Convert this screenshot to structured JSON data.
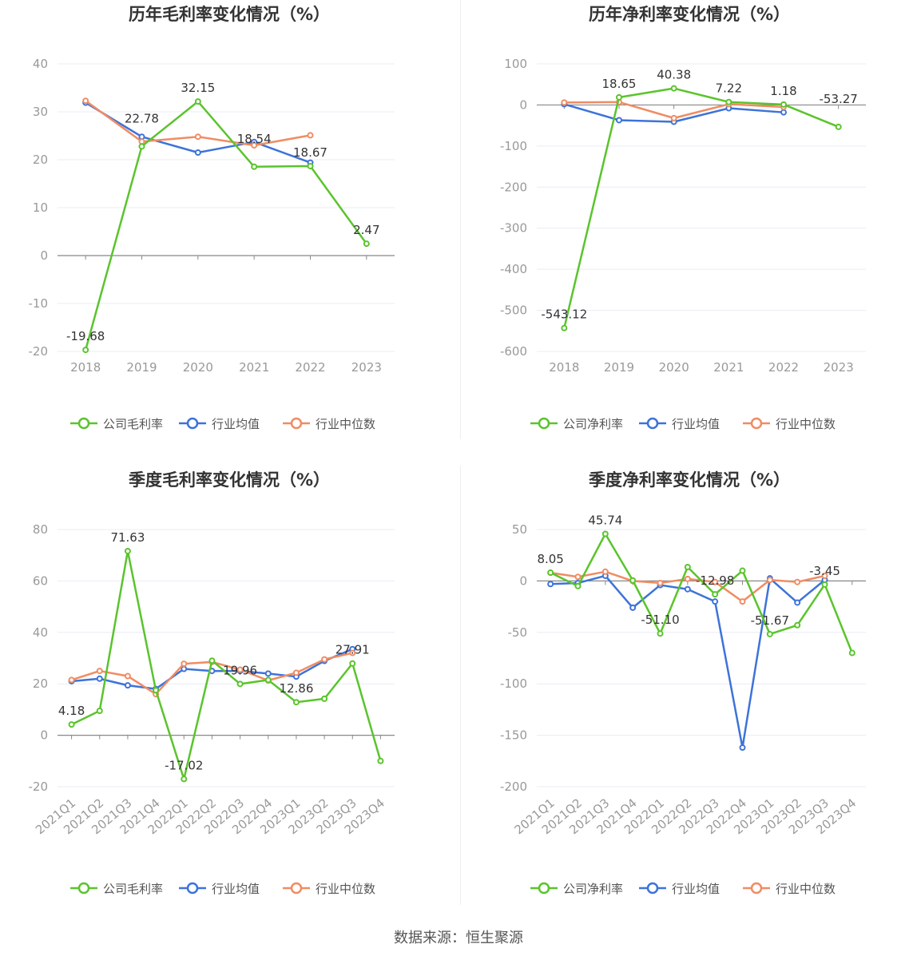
{
  "source": "数据来源：恒生聚源",
  "colors": {
    "company": "#5ac42c",
    "avg": "#3d73d9",
    "median": "#f08c63"
  },
  "chart_data": [
    {
      "type": "line",
      "title": "历年毛利率变化情况（%）",
      "categories": [
        "2018",
        "2019",
        "2020",
        "2021",
        "2022",
        "2023"
      ],
      "ylim": [
        -20,
        40
      ],
      "yticks": [
        40,
        30,
        20,
        10,
        0,
        -10,
        -20
      ],
      "legend": "bottom",
      "series": [
        {
          "name": "公司毛利率",
          "values": [
            -19.68,
            22.78,
            32.15,
            18.54,
            18.67,
            2.47
          ],
          "labels": [
            "-19.68",
            "22.78",
            "32.15",
            "18.54",
            "18.67",
            "2.47"
          ]
        },
        {
          "name": "行业均值",
          "values": [
            31.9,
            24.8,
            21.5,
            23.7,
            19.4,
            null
          ]
        },
        {
          "name": "行业中位数",
          "values": [
            32.3,
            23.8,
            24.8,
            23.0,
            25.1,
            null
          ]
        }
      ]
    },
    {
      "type": "line",
      "title": "历年净利率变化情况（%）",
      "categories": [
        "2018",
        "2019",
        "2020",
        "2021",
        "2022",
        "2023"
      ],
      "ylim": [
        -600,
        100
      ],
      "yticks": [
        100,
        0,
        -100,
        -200,
        -300,
        -400,
        -500,
        -600
      ],
      "legend": "bottom",
      "series": [
        {
          "name": "公司净利率",
          "values": [
            -543.12,
            18.65,
            40.38,
            7.22,
            1.18,
            -53.27
          ],
          "labels": [
            "-543.12",
            "18.65",
            "40.38",
            "7.22",
            "1.18",
            "-53.27"
          ]
        },
        {
          "name": "行业均值",
          "values": [
            2,
            -37,
            -41,
            -8,
            -18,
            null
          ]
        },
        {
          "name": "行业中位数",
          "values": [
            6,
            7,
            -32,
            2,
            -5,
            null
          ]
        }
      ]
    },
    {
      "type": "line",
      "title": "季度毛利率变化情况（%）",
      "categories": [
        "2021Q1",
        "2021Q2",
        "2021Q3",
        "2021Q4",
        "2022Q1",
        "2022Q2",
        "2022Q3",
        "2022Q4",
        "2023Q1",
        "2023Q2",
        "2023Q3",
        "2023Q4"
      ],
      "ylim": [
        -20,
        80
      ],
      "yticks": [
        80,
        60,
        40,
        20,
        0,
        -20
      ],
      "legend": "bottom",
      "series": [
        {
          "name": "公司毛利率",
          "values": [
            4.18,
            9.5,
            71.63,
            17.5,
            -17.02,
            29.0,
            19.96,
            21.5,
            12.86,
            14.2,
            27.91,
            -10.0
          ],
          "labels": [
            "4.18",
            "",
            "71.63",
            "",
            "-17.02",
            "",
            "19.96",
            "",
            "12.86",
            "",
            "27.91",
            ""
          ]
        },
        {
          "name": "行业均值",
          "values": [
            21.0,
            22.0,
            19.4,
            18.0,
            25.8,
            25.0,
            25.0,
            24.0,
            22.8,
            28.9,
            33.5,
            null
          ]
        },
        {
          "name": "行业中位数",
          "values": [
            21.5,
            25.0,
            23.0,
            16.0,
            27.8,
            28.5,
            25.5,
            21.3,
            24.3,
            29.5,
            32.0,
            null
          ]
        }
      ]
    },
    {
      "type": "line",
      "title": "季度净利率变化情况（%）",
      "categories": [
        "2021Q1",
        "2021Q2",
        "2021Q3",
        "2021Q4",
        "2022Q1",
        "2022Q2",
        "2022Q3",
        "2022Q4",
        "2023Q1",
        "2023Q2",
        "2023Q3",
        "2023Q4"
      ],
      "ylim": [
        -200,
        50
      ],
      "yticks": [
        50,
        0,
        -50,
        -100,
        -150,
        -200
      ],
      "legend": "bottom",
      "series": [
        {
          "name": "公司净利率",
          "values": [
            8.05,
            -5.0,
            45.74,
            0.5,
            -51.1,
            13.5,
            -12.98,
            10.0,
            -51.67,
            -43.0,
            -3.45,
            -70.0
          ],
          "labels": [
            "8.05",
            "",
            "45.74",
            "",
            "-51.10",
            "",
            "-12.98",
            "",
            "-51.67",
            "",
            "-3.45",
            ""
          ]
        },
        {
          "name": "行业均值",
          "values": [
            -3.0,
            -2.0,
            5.0,
            -26.0,
            -4.0,
            -8.0,
            -20.0,
            -162.0,
            2.5,
            -21.0,
            1.0,
            null
          ]
        },
        {
          "name": "行业中位数",
          "values": [
            8.0,
            4.0,
            9.0,
            0.0,
            -2.0,
            2.0,
            -1.0,
            -20.0,
            1.0,
            -1.0,
            5.0,
            null
          ]
        }
      ]
    }
  ]
}
